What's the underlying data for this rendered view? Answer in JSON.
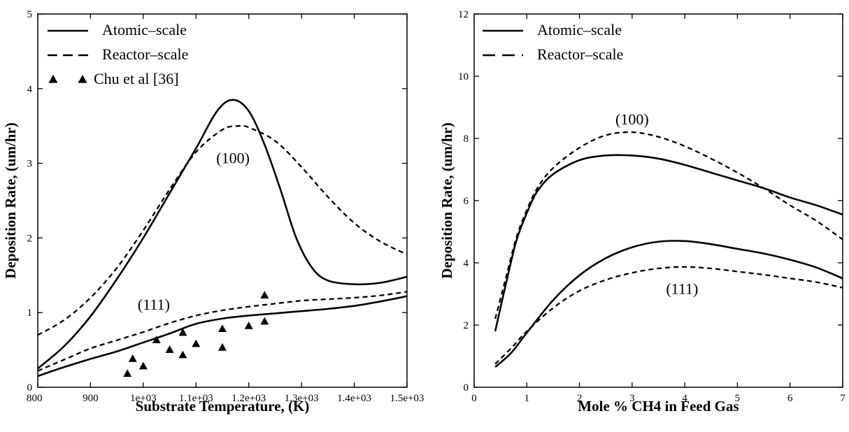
{
  "chart_data": [
    {
      "type": "line",
      "xlabel": "Substrate Temperature, (K)",
      "ylabel": "Deposition Rate, (um/hr)",
      "xlim": [
        800,
        1500
      ],
      "ylim": [
        0,
        5
      ],
      "x_ticks": [
        800,
        900,
        1000,
        1100,
        1200,
        1300,
        1400,
        1500
      ],
      "x_tick_labels": [
        "800",
        "900",
        "1e+03",
        "1.1e+03",
        "1.2e+03",
        "1.3e+03",
        "1.4e+03",
        "1.5e+03"
      ],
      "y_ticks": [
        0,
        1,
        2,
        3,
        4,
        5
      ],
      "y_tick_labels": [
        "0",
        "1",
        "2",
        "3",
        "4",
        "5"
      ],
      "legend": {
        "placement": "top-left",
        "entries": [
          {
            "label": "Atomic–scale",
            "style": "solid"
          },
          {
            "label": "Reactor–scale",
            "style": "dashed"
          },
          {
            "label": "Chu et al [36]",
            "style": "triangle-marker"
          }
        ]
      },
      "annotations": [
        {
          "text": "(100)",
          "x": 1170,
          "y": 3.0
        },
        {
          "text": "(111)",
          "x": 1020,
          "y": 1.04
        }
      ],
      "series": [
        {
          "name": "Atomic–scale",
          "label": "(100)",
          "style": "solid",
          "points": [
            [
              800,
              0.25
            ],
            [
              850,
              0.55
            ],
            [
              900,
              0.95
            ],
            [
              950,
              1.45
            ],
            [
              1000,
              2.0
            ],
            [
              1050,
              2.6
            ],
            [
              1100,
              3.2
            ],
            [
              1140,
              3.7
            ],
            [
              1170,
              3.85
            ],
            [
              1200,
              3.7
            ],
            [
              1230,
              3.25
            ],
            [
              1260,
              2.65
            ],
            [
              1290,
              2.0
            ],
            [
              1320,
              1.6
            ],
            [
              1350,
              1.43
            ],
            [
              1400,
              1.38
            ],
            [
              1450,
              1.4
            ],
            [
              1500,
              1.48
            ]
          ]
        },
        {
          "name": "Reactor–scale",
          "label": "(100)",
          "style": "dashed",
          "points": [
            [
              800,
              0.7
            ],
            [
              850,
              0.9
            ],
            [
              900,
              1.2
            ],
            [
              950,
              1.6
            ],
            [
              1000,
              2.1
            ],
            [
              1050,
              2.65
            ],
            [
              1100,
              3.15
            ],
            [
              1150,
              3.45
            ],
            [
              1180,
              3.5
            ],
            [
              1200,
              3.48
            ],
            [
              1250,
              3.3
            ],
            [
              1300,
              2.95
            ],
            [
              1350,
              2.55
            ],
            [
              1400,
              2.2
            ],
            [
              1450,
              1.95
            ],
            [
              1500,
              1.78
            ]
          ]
        },
        {
          "name": "Atomic–scale",
          "label": "(111)",
          "style": "solid",
          "points": [
            [
              800,
              0.15
            ],
            [
              850,
              0.27
            ],
            [
              900,
              0.38
            ],
            [
              950,
              0.48
            ],
            [
              1000,
              0.6
            ],
            [
              1050,
              0.72
            ],
            [
              1100,
              0.85
            ],
            [
              1150,
              0.92
            ],
            [
              1200,
              0.96
            ],
            [
              1250,
              0.99
            ],
            [
              1300,
              1.02
            ],
            [
              1350,
              1.05
            ],
            [
              1400,
              1.09
            ],
            [
              1450,
              1.15
            ],
            [
              1500,
              1.22
            ]
          ]
        },
        {
          "name": "Reactor–scale",
          "label": "(111)",
          "style": "dashed",
          "points": [
            [
              800,
              0.22
            ],
            [
              850,
              0.37
            ],
            [
              900,
              0.52
            ],
            [
              950,
              0.63
            ],
            [
              1000,
              0.74
            ],
            [
              1050,
              0.86
            ],
            [
              1100,
              0.96
            ],
            [
              1150,
              1.03
            ],
            [
              1200,
              1.08
            ],
            [
              1250,
              1.12
            ],
            [
              1300,
              1.16
            ],
            [
              1350,
              1.18
            ],
            [
              1400,
              1.2
            ],
            [
              1450,
              1.23
            ],
            [
              1500,
              1.28
            ]
          ]
        },
        {
          "name": "Chu et al [36]",
          "style": "triangle-marker",
          "points": [
            [
              970,
              0.18
            ],
            [
              980,
              0.38
            ],
            [
              1000,
              0.28
            ],
            [
              1025,
              0.63
            ],
            [
              1050,
              0.5
            ],
            [
              1075,
              0.73
            ],
            [
              1075,
              0.43
            ],
            [
              1100,
              0.58
            ],
            [
              1150,
              0.78
            ],
            [
              1150,
              0.53
            ],
            [
              1200,
              0.82
            ],
            [
              1230,
              1.23
            ],
            [
              1230,
              0.88
            ]
          ]
        }
      ]
    },
    {
      "type": "line",
      "xlabel": "Mole % CH4 in Feed Gas",
      "ylabel": "Deposition Rate, (um/hr)",
      "xlim": [
        0,
        7
      ],
      "ylim": [
        0,
        12
      ],
      "x_ticks": [
        0,
        1,
        2,
        3,
        4,
        5,
        6,
        7
      ],
      "x_tick_labels": [
        "0",
        "1",
        "2",
        "3",
        "4",
        "5",
        "6",
        "7"
      ],
      "y_ticks": [
        0,
        2,
        4,
        6,
        8,
        10,
        12
      ],
      "y_tick_labels": [
        "0",
        "2",
        "4",
        "6",
        "8",
        "10",
        "12"
      ],
      "legend": {
        "placement": "top-left",
        "entries": [
          {
            "label": "Atomic–scale",
            "style": "solid"
          },
          {
            "label": "Reactor–scale",
            "style": "dashed"
          }
        ]
      },
      "annotations": [
        {
          "text": "(100)",
          "x": 3.0,
          "y": 8.45
        },
        {
          "text": "(111)",
          "x": 3.95,
          "y": 3.0
        }
      ],
      "series": [
        {
          "name": "Atomic–scale",
          "label": "(100)",
          "style": "solid",
          "points": [
            [
              0.4,
              1.8
            ],
            [
              0.6,
              3.3
            ],
            [
              0.8,
              4.7
            ],
            [
              1.0,
              5.6
            ],
            [
              1.2,
              6.3
            ],
            [
              1.5,
              6.85
            ],
            [
              2.0,
              7.3
            ],
            [
              2.5,
              7.45
            ],
            [
              3.0,
              7.45
            ],
            [
              3.5,
              7.35
            ],
            [
              4.0,
              7.15
            ],
            [
              4.5,
              6.9
            ],
            [
              5.0,
              6.65
            ],
            [
              5.5,
              6.4
            ],
            [
              6.0,
              6.1
            ],
            [
              6.5,
              5.85
            ],
            [
              7.0,
              5.55
            ]
          ]
        },
        {
          "name": "Reactor–scale",
          "label": "(100)",
          "style": "dashed",
          "points": [
            [
              0.4,
              2.2
            ],
            [
              0.6,
              3.5
            ],
            [
              0.8,
              4.8
            ],
            [
              1.0,
              5.7
            ],
            [
              1.2,
              6.4
            ],
            [
              1.5,
              7.05
            ],
            [
              2.0,
              7.7
            ],
            [
              2.5,
              8.1
            ],
            [
              3.0,
              8.2
            ],
            [
              3.5,
              8.05
            ],
            [
              4.0,
              7.75
            ],
            [
              4.5,
              7.35
            ],
            [
              5.0,
              6.9
            ],
            [
              5.5,
              6.4
            ],
            [
              6.0,
              5.85
            ],
            [
              6.5,
              5.35
            ],
            [
              7.0,
              4.75
            ]
          ]
        },
        {
          "name": "Atomic–scale",
          "label": "(111)",
          "style": "solid",
          "points": [
            [
              0.4,
              0.65
            ],
            [
              0.7,
              1.1
            ],
            [
              1.0,
              1.75
            ],
            [
              1.5,
              2.8
            ],
            [
              2.0,
              3.6
            ],
            [
              2.5,
              4.15
            ],
            [
              3.0,
              4.5
            ],
            [
              3.5,
              4.68
            ],
            [
              4.0,
              4.7
            ],
            [
              4.5,
              4.6
            ],
            [
              5.0,
              4.45
            ],
            [
              5.5,
              4.3
            ],
            [
              6.0,
              4.1
            ],
            [
              6.5,
              3.85
            ],
            [
              7.0,
              3.5
            ]
          ]
        },
        {
          "name": "Reactor–scale",
          "label": "(111)",
          "style": "dashed",
          "points": [
            [
              0.4,
              0.75
            ],
            [
              0.7,
              1.25
            ],
            [
              1.0,
              1.8
            ],
            [
              1.5,
              2.55
            ],
            [
              2.0,
              3.1
            ],
            [
              2.5,
              3.45
            ],
            [
              3.0,
              3.68
            ],
            [
              3.5,
              3.82
            ],
            [
              4.0,
              3.87
            ],
            [
              4.5,
              3.82
            ],
            [
              5.0,
              3.72
            ],
            [
              5.5,
              3.62
            ],
            [
              6.0,
              3.5
            ],
            [
              6.5,
              3.38
            ],
            [
              7.0,
              3.2
            ]
          ]
        }
      ]
    }
  ]
}
